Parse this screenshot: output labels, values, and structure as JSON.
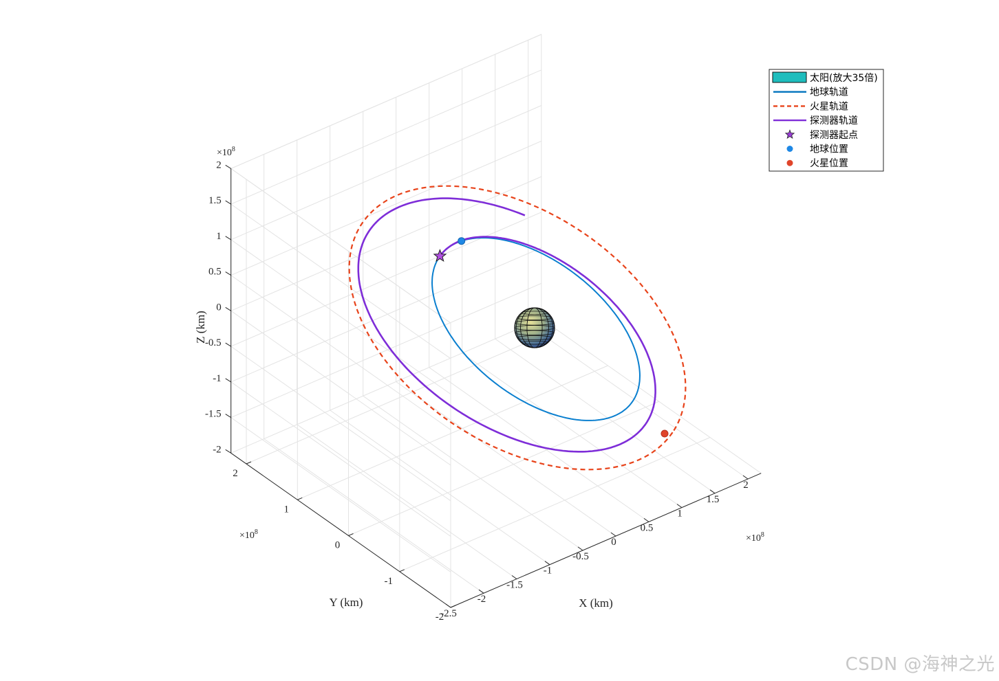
{
  "chart_data": {
    "type": "line",
    "projection": "3d",
    "xlabel": "X (km)",
    "ylabel": "Y (km)",
    "zlabel": "Z (km)",
    "exponent_label": "×10",
    "exponent_power": "8",
    "xticks": [
      "-2.5",
      "-2",
      "-1.5",
      "-1",
      "-0.5",
      "0",
      "0.5",
      "1",
      "1.5",
      "2"
    ],
    "yticks": [
      "-2",
      "-1",
      "0",
      "1",
      "2"
    ],
    "zticks": [
      "-2",
      "-1.5",
      "-1",
      "-0.5",
      "0",
      "0.5",
      "1",
      "1.5",
      "2"
    ],
    "xlim": [
      -2.5,
      2.2
    ],
    "ylim": [
      -2,
      2.3
    ],
    "zlim": [
      -2,
      2
    ],
    "grid": true,
    "legend_placement": "top-right",
    "legend": [
      {
        "label": "太阳(放大35倍)",
        "kind": "patch",
        "color": "#1ebdbd"
      },
      {
        "label": "地球轨道",
        "kind": "line",
        "color": "#0072BD"
      },
      {
        "label": "火星轨道",
        "kind": "dashed",
        "color": "#E8431A"
      },
      {
        "label": "探测器轨道",
        "kind": "line",
        "color": "#7E2DD8"
      },
      {
        "label": "探测器起点",
        "kind": "star",
        "color": "#9B3DD8"
      },
      {
        "label": "地球位置",
        "kind": "dot",
        "color": "#1E88E5"
      },
      {
        "label": "火星位置",
        "kind": "dot",
        "color": "#E0442A"
      }
    ],
    "series": [
      {
        "name": "地球轨道",
        "shape": "circular orbit",
        "radius_1e8km": 1.5,
        "tilt": "inclined plane"
      },
      {
        "name": "火星轨道",
        "shape": "circular orbit",
        "radius_1e8km": 2.28,
        "tilt": "inclined plane"
      },
      {
        "name": "探测器轨道",
        "shape": "transfer spiral",
        "start_radius_1e8km": 1.5,
        "end_radius_1e8km": 2.28
      }
    ],
    "markers": [
      {
        "name": "探测器起点",
        "on": "地球轨道"
      },
      {
        "name": "地球位置",
        "on": "地球轨道"
      },
      {
        "name": "火星位置",
        "on": "火星轨道"
      }
    ]
  },
  "watermark": "CSDN @海神之光"
}
